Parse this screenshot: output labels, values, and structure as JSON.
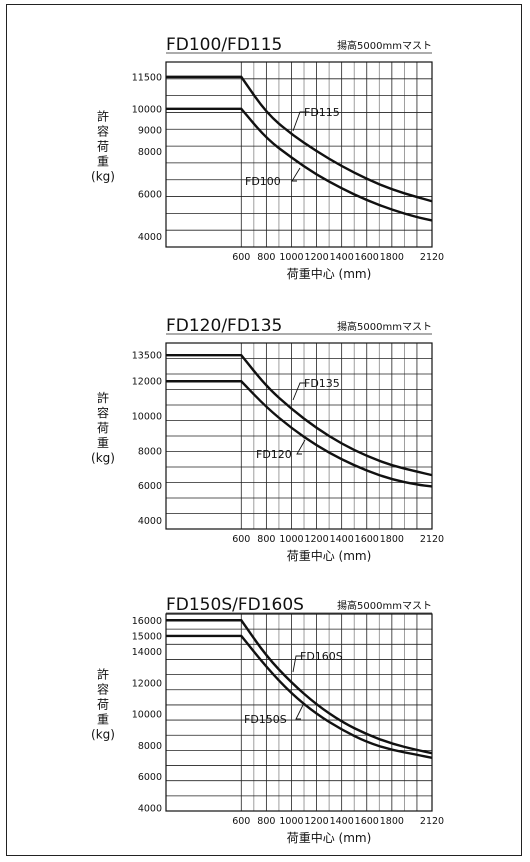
{
  "chart_data": [
    {
      "type": "line",
      "title": "FD100/FD115",
      "mast": "揚高5000mmマスト",
      "ylabel": [
        "許",
        "容",
        "荷",
        "重",
        "(kg)"
      ],
      "xlabel": "荷重中心 (mm)",
      "xlim": [
        0,
        2120
      ],
      "ylim": [
        3500,
        12200
      ],
      "x_ticks": [
        "600",
        "800",
        "1000",
        "1200",
        "1400",
        "1600",
        "1800",
        "2120"
      ],
      "y_ticks": [
        "11500",
        "10000",
        "9000",
        "8000",
        "6000",
        "4000"
      ],
      "series": [
        {
          "name": "FD115",
          "x": [
            0,
            600,
            800,
            1000,
            1200,
            1400,
            1600,
            1800,
            2000,
            2120
          ],
          "y": [
            11500,
            11500,
            9800,
            8800,
            8000,
            7300,
            6700,
            6200,
            5850,
            5650
          ]
        },
        {
          "name": "FD100",
          "x": [
            0,
            600,
            800,
            1000,
            1200,
            1400,
            1600,
            1800,
            2000,
            2120
          ],
          "y": [
            10000,
            10000,
            8600,
            7700,
            6900,
            6250,
            5700,
            5250,
            4900,
            4750
          ]
        }
      ]
    },
    {
      "type": "line",
      "title": "FD120/FD135",
      "mast": "揚高5000mmマスト",
      "ylabel": [
        "許",
        "容",
        "荷",
        "重",
        "(kg)"
      ],
      "xlabel": "荷重中心 (mm)",
      "xlim": [
        0,
        2120
      ],
      "ylim": [
        3500,
        14200
      ],
      "x_ticks": [
        "600",
        "800",
        "1000",
        "1200",
        "1400",
        "1600",
        "1800",
        "2120"
      ],
      "y_ticks": [
        "13500",
        "12000",
        "10000",
        "8000",
        "6000",
        "4000"
      ],
      "series": [
        {
          "name": "FD135",
          "x": [
            0,
            600,
            800,
            1000,
            1200,
            1400,
            1600,
            1800,
            2000,
            2120
          ],
          "y": [
            13500,
            13500,
            11700,
            10400,
            9300,
            8400,
            7700,
            7150,
            6800,
            6600
          ]
        },
        {
          "name": "FD120",
          "x": [
            0,
            600,
            800,
            1000,
            1200,
            1400,
            1600,
            1800,
            2000,
            2120
          ],
          "y": [
            12000,
            12000,
            10500,
            9300,
            8300,
            7500,
            6850,
            6350,
            6050,
            5950
          ]
        }
      ]
    },
    {
      "type": "line",
      "title": "FD150S/FD160S",
      "mast": "揚高5000mmマスト",
      "ylabel": [
        "許",
        "容",
        "荷",
        "重",
        "(kg)"
      ],
      "xlabel": "荷重中心 (mm)",
      "xlim": [
        0,
        2120
      ],
      "ylim": [
        3800,
        16400
      ],
      "x_ticks": [
        "600",
        "800",
        "1000",
        "1200",
        "1400",
        "1600",
        "1800",
        "2120"
      ],
      "y_ticks": [
        "16000",
        "15000",
        "14000",
        "12000",
        "10000",
        "8000",
        "6000",
        "4000"
      ],
      "series": [
        {
          "name": "FD160S",
          "x": [
            0,
            600,
            800,
            1000,
            1200,
            1400,
            1600,
            1800,
            2000,
            2120
          ],
          "y": [
            16000,
            16000,
            13700,
            12000,
            10600,
            9500,
            8700,
            8100,
            7700,
            7500
          ]
        },
        {
          "name": "FD150S",
          "x": [
            0,
            600,
            800,
            1000,
            1200,
            1400,
            1600,
            1800,
            2000,
            2120
          ],
          "y": [
            15000,
            15000,
            13000,
            11300,
            10000,
            9000,
            8200,
            7700,
            7400,
            7200
          ]
        }
      ]
    }
  ]
}
